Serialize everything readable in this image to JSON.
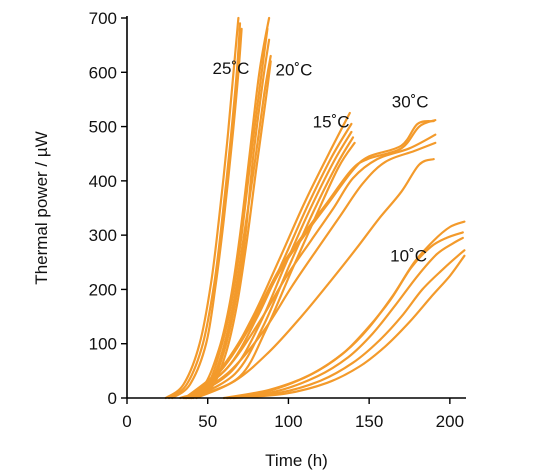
{
  "chart_data": {
    "type": "line",
    "title": "",
    "xlabel": "Time (h)",
    "ylabel": "Thermal power / µW",
    "xlim": [
      0,
      210
    ],
    "ylim": [
      0,
      700
    ],
    "xticks": [
      0,
      50,
      100,
      150,
      200
    ],
    "yticks": [
      0,
      100,
      200,
      300,
      400,
      500,
      600,
      700
    ],
    "xtick_labels": [
      "0",
      "50",
      "100",
      "150",
      "200"
    ],
    "ytick_labels": [
      "0",
      "100",
      "200",
      "300",
      "400",
      "500",
      "600",
      "700"
    ],
    "grid": false,
    "legend": "none",
    "line_color": "#F39A2B",
    "series": [
      {
        "name": "25˚C",
        "label_at": [
          53,
          597
        ],
        "curves": [
          {
            "x": [
              24,
              35,
              45,
              52,
              57,
              62,
              66,
              69
            ],
            "y": [
              0,
              25,
              100,
              210,
              330,
              470,
              600,
              700
            ]
          },
          {
            "x": [
              26,
              37,
              47,
              54,
              59,
              64,
              68,
              70
            ],
            "y": [
              0,
              25,
              100,
              210,
              330,
              470,
              600,
              690
            ]
          },
          {
            "x": [
              28,
              39,
              49,
              55,
              60,
              65,
              69,
              71
            ],
            "y": [
              0,
              25,
              100,
              210,
              330,
              470,
              600,
              680
            ]
          }
        ]
      },
      {
        "name": "20˚C",
        "label_at": [
          92,
          594
        ],
        "curves": [
          {
            "x": [
              33,
              47,
              57,
              64,
              70,
              76,
              82,
              88
            ],
            "y": [
              0,
              20,
              90,
              180,
              300,
              450,
              600,
              700
            ]
          },
          {
            "x": [
              35,
              49,
              58,
              65,
              71,
              77,
              83,
              87
            ],
            "y": [
              0,
              20,
              90,
              180,
              300,
              450,
              590,
              680
            ]
          },
          {
            "x": [
              37,
              51,
              60,
              67,
              73,
              78,
              84,
              88
            ],
            "y": [
              0,
              20,
              85,
              175,
              290,
              440,
              580,
              660
            ]
          },
          {
            "x": [
              36,
              50,
              59,
              66,
              72,
              79,
              85,
              89
            ],
            "y": [
              0,
              20,
              85,
              175,
              290,
              430,
              560,
              630
            ]
          },
          {
            "x": [
              38,
              52,
              61,
              68,
              74,
              80,
              86,
              89
            ],
            "y": [
              0,
              18,
              80,
              170,
              285,
              420,
              550,
              620
            ]
          }
        ]
      },
      {
        "name": "15˚C",
        "label_at": [
          115,
          498
        ],
        "curves": [
          {
            "x": [
              36,
              60,
              78,
              95,
              110,
              125,
              138
            ],
            "y": [
              0,
              60,
              150,
              260,
              360,
              450,
              525
            ]
          },
          {
            "x": [
              37,
              62,
              80,
              97,
              112,
              127,
              139
            ],
            "y": [
              0,
              55,
              145,
              255,
              355,
              445,
              505
            ]
          },
          {
            "x": [
              39,
              65,
              82,
              98,
              113,
              128,
              139
            ],
            "y": [
              0,
              50,
              135,
              245,
              345,
              435,
              490
            ]
          },
          {
            "x": [
              41,
              67,
              84,
              100,
              115,
              130,
              140
            ],
            "y": [
              0,
              45,
              130,
              240,
              340,
              430,
              480
            ]
          },
          {
            "x": [
              43,
              70,
              86,
              102,
              117,
              131,
              141
            ],
            "y": [
              0,
              40,
              125,
              235,
              335,
              425,
              470
            ]
          }
        ]
      },
      {
        "name": "30˚C",
        "label_at": [
          164,
          535
        ],
        "curves": [
          {
            "x": [
              37,
              58,
              78,
              95,
              110,
              125,
              140,
              150,
              170,
              180,
              190
            ],
            "y": [
              0,
              50,
              140,
              235,
              300,
              360,
              420,
              445,
              465,
              505,
              510
            ]
          },
          {
            "x": [
              36,
              57,
              77,
              94,
              109,
              124,
              139,
              149,
              170,
              181,
              191
            ],
            "y": [
              0,
              50,
              140,
              235,
              300,
              360,
              420,
              440,
              460,
              500,
              512
            ]
          },
          {
            "x": [
              39,
              62,
              82,
              99,
              114,
              128,
              140,
              155,
              175,
              191
            ],
            "y": [
              0,
              55,
              140,
              225,
              290,
              350,
              405,
              440,
              460,
              485
            ]
          },
          {
            "x": [
              40,
              64,
              85,
              102,
              118,
              132,
              146,
              160,
              178,
              191
            ],
            "y": [
              0,
              50,
              125,
              205,
              275,
              335,
              395,
              435,
              455,
              470
            ]
          },
          {
            "x": [
              40,
              66,
              88,
              108,
              126,
              142,
              156,
              170,
              181,
              190
            ],
            "y": [
              0,
              30,
              85,
              150,
              215,
              275,
              330,
              380,
              430,
              440
            ]
          }
        ]
      },
      {
        "name": "10˚C",
        "label_at": [
          163,
          251
        ],
        "curves": [
          {
            "x": [
              62,
              90,
              115,
              135,
              150,
              165,
              178,
              190,
              200,
              209
            ],
            "y": [
              0,
              15,
              45,
              85,
              130,
              190,
              250,
              290,
              315,
              325
            ]
          },
          {
            "x": [
              60,
              88,
              113,
              133,
              148,
              163,
              176,
              188,
              198,
              208
            ],
            "y": [
              0,
              15,
              42,
              80,
              125,
              180,
              240,
              278,
              295,
              305
            ]
          },
          {
            "x": [
              62,
              92,
              118,
              137,
              152,
              166,
              180,
              192,
              202,
              208
            ],
            "y": [
              0,
              12,
              40,
              75,
              118,
              170,
              225,
              265,
              285,
              295
            ]
          },
          {
            "x": [
              64,
              95,
              120,
              140,
              156,
              170,
              183,
              196,
              205,
              209
            ],
            "y": [
              0,
              10,
              32,
              65,
              105,
              150,
              200,
              238,
              262,
              272
            ]
          },
          {
            "x": [
              66,
              98,
              124,
              144,
              160,
              175,
              188,
              200,
              209
            ],
            "y": [
              0,
              8,
              28,
              58,
              95,
              140,
              185,
              225,
              262
            ]
          }
        ]
      }
    ]
  }
}
